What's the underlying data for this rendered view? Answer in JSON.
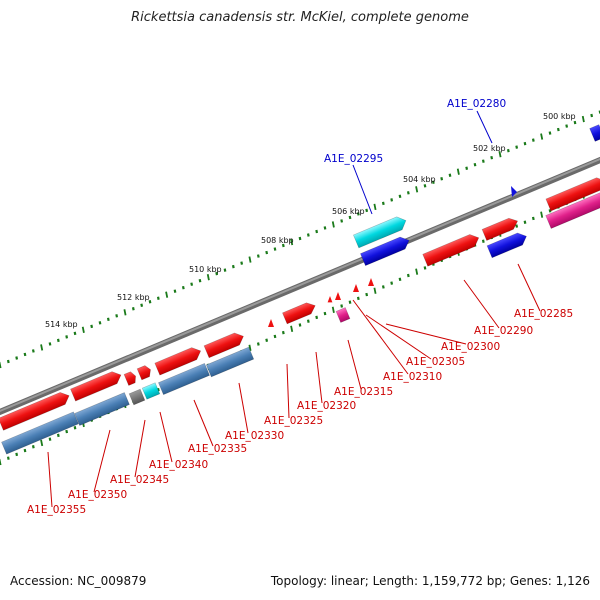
{
  "title": "Rickettsia canadensis str. McKiel, complete genome",
  "footer": {
    "accession": "Accession: NC_009879",
    "summary": "Topology: linear; Length: 1,159,772 bp; Genes: 1,126"
  },
  "scale_labels": [
    "500 kbp",
    "502 kbp",
    "504 kbp",
    "506 kbp",
    "508 kbp",
    "510 kbp",
    "512 kbp",
    "514 kbp"
  ],
  "genes": [
    {
      "id": "A1E_02280",
      "color": "#0000cc"
    },
    {
      "id": "A1E_02285",
      "color": "#cc0000"
    },
    {
      "id": "A1E_02290",
      "color": "#cc0000"
    },
    {
      "id": "A1E_02295",
      "color": "#0000cc"
    },
    {
      "id": "A1E_02300",
      "color": "#cc0000"
    },
    {
      "id": "A1E_02305",
      "color": "#cc0000"
    },
    {
      "id": "A1E_02310",
      "color": "#cc0000"
    },
    {
      "id": "A1E_02315",
      "color": "#cc0000"
    },
    {
      "id": "A1E_02320",
      "color": "#cc0000"
    },
    {
      "id": "A1E_02325",
      "color": "#cc0000"
    },
    {
      "id": "A1E_02330",
      "color": "#cc0000"
    },
    {
      "id": "A1E_02335",
      "color": "#cc0000"
    },
    {
      "id": "A1E_02340",
      "color": "#cc0000"
    },
    {
      "id": "A1E_02345",
      "color": "#cc0000"
    },
    {
      "id": "A1E_02350",
      "color": "#cc0000"
    },
    {
      "id": "A1E_02355",
      "color": "#cc0000"
    }
  ],
  "colors": {
    "backbone": "#808080",
    "scale_ticks": "#1a7a1a",
    "cds_forward": "#ee1111",
    "cds_reverse": "#4a7fb5",
    "cds_blue": "#1111dd",
    "cds_cyan": "#00d8e0",
    "cds_magenta": "#e0208a",
    "cds_grey": "#707070"
  }
}
